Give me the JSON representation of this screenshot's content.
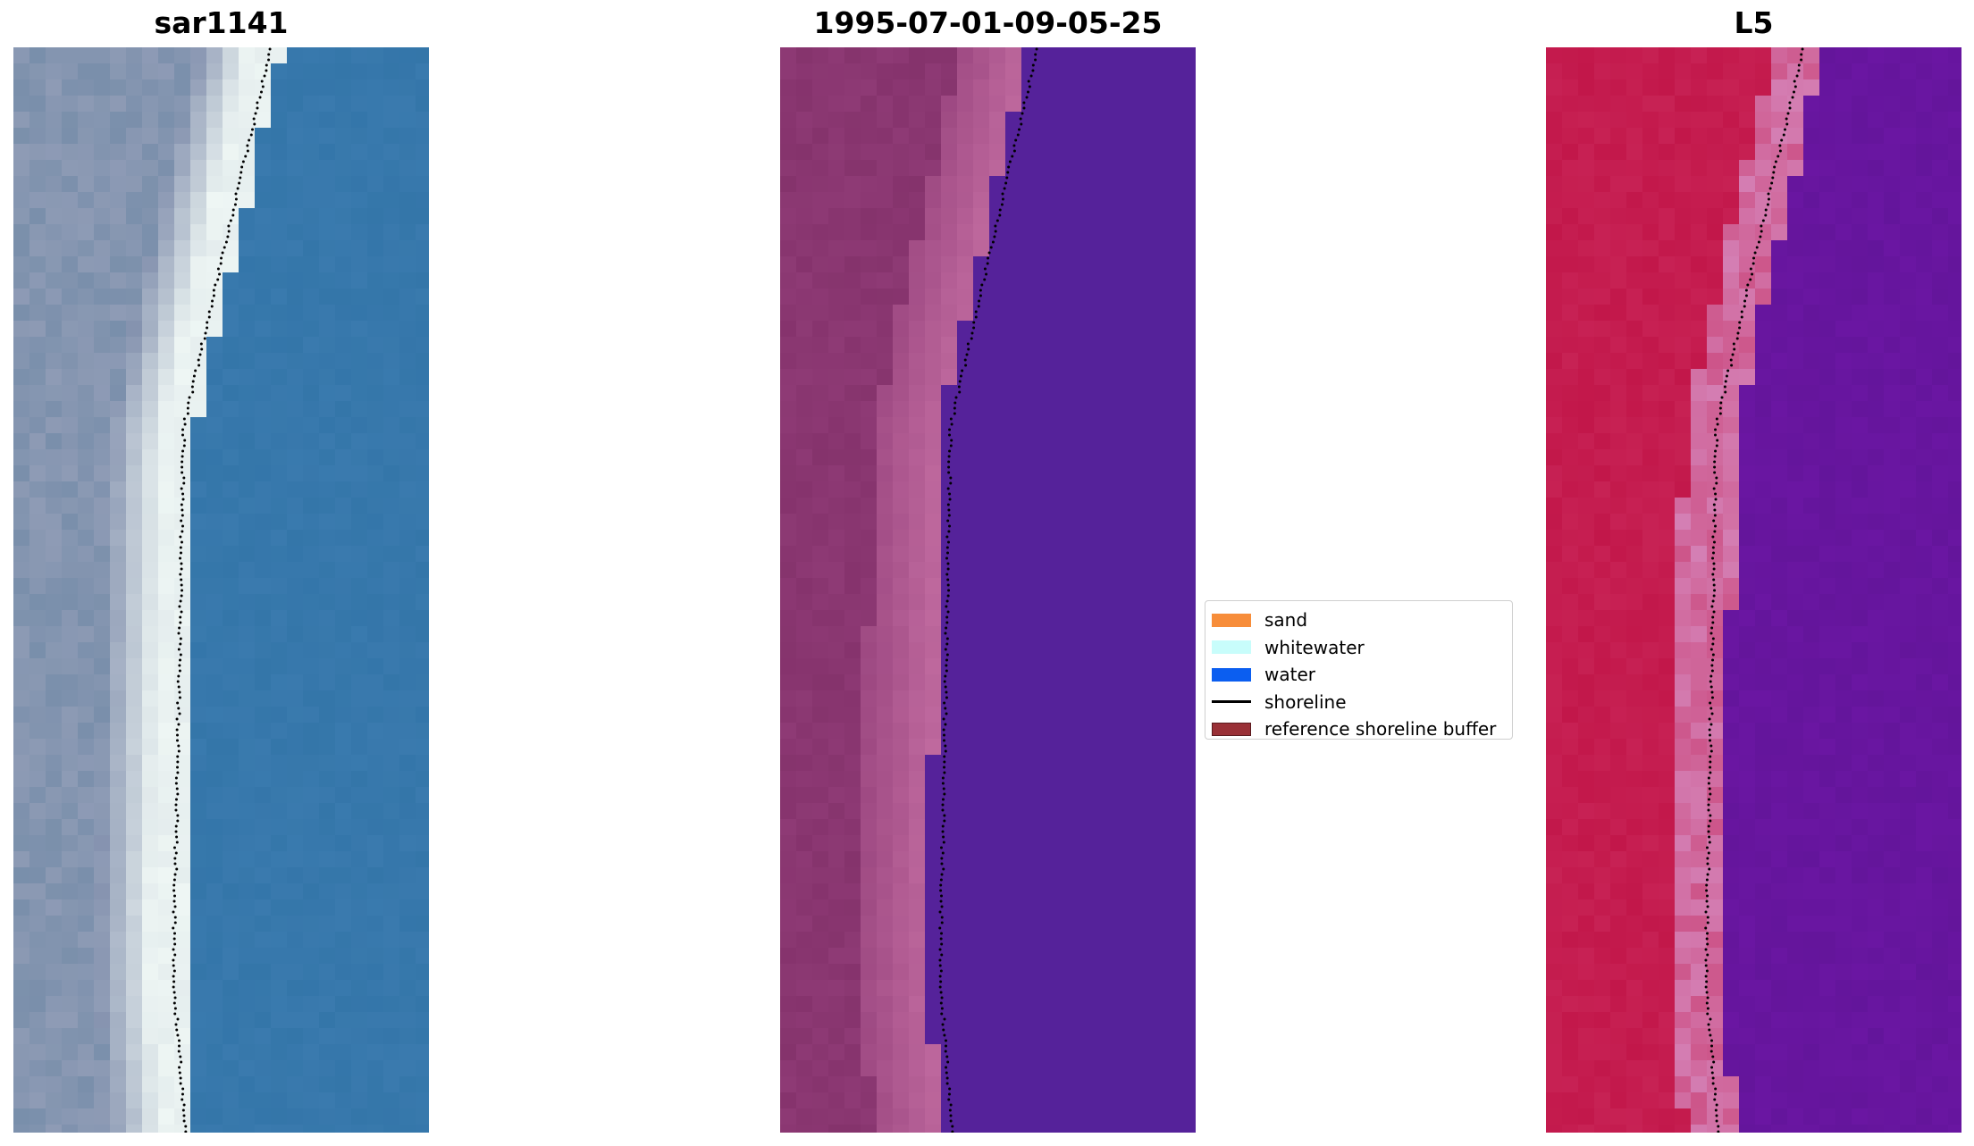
{
  "panels": [
    {
      "title": "sar1141",
      "style": "rgb",
      "shore_color": "#000000"
    },
    {
      "title": "1995-07-01-09-05-25",
      "style": "classified",
      "shore_color": "#000000"
    },
    {
      "title": "L5",
      "style": "ndwi",
      "shore_color": "#000000"
    }
  ],
  "legend": {
    "items": [
      {
        "label": "sand",
        "color": "#f78d3a",
        "kind": "patch"
      },
      {
        "label": "whitewater",
        "color": "#c8fdfb",
        "kind": "patch"
      },
      {
        "label": "water",
        "color": "#0b5ef0",
        "kind": "patch"
      },
      {
        "label": "shoreline",
        "color": "#000000",
        "kind": "line"
      },
      {
        "label": "reference shoreline buffer",
        "color": "#993036",
        "kind": "patch"
      }
    ]
  },
  "colors": {
    "rgb_water": "#3a7aae",
    "rgb_surf": "#eef6f4",
    "rgb_land": "#8e9bb5",
    "class_water": "#55229a",
    "class_land": "#8e3a75",
    "class_buffer": "#c06a9f",
    "ndwi_land": "#c2174a",
    "ndwi_water": "#6a16a2",
    "ndwi_shore": "#d47fb4"
  }
}
